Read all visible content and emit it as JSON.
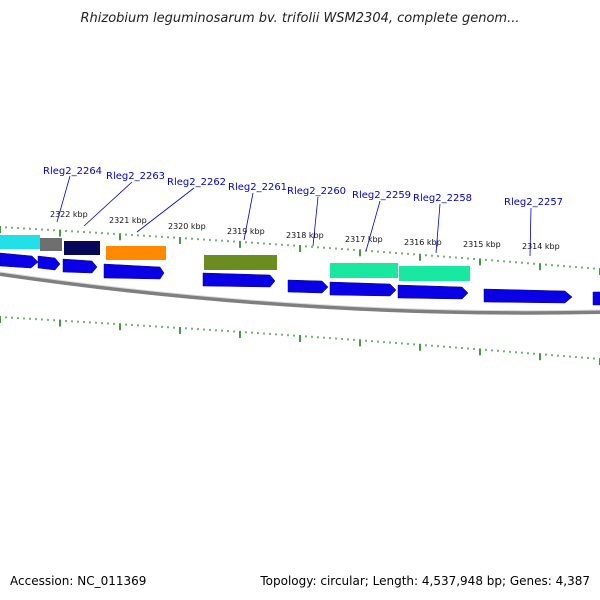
{
  "title": "Rhizobium leguminosarum bv. trifolii WSM2304, complete genom...",
  "footer": {
    "accession": "Accession: NC_011369",
    "summary": "Topology: circular; Length: 4,537,948 bp; Genes: 4,387"
  },
  "colors": {
    "backbone": "#7f7f7f",
    "tick": "#1a7f1a",
    "label": "#0000cc",
    "cds_blue": "#0a00e6"
  },
  "kbp_labels": [
    "2322 kbp",
    "2321 kbp",
    "2320 kbp",
    "2319 kbp",
    "2318 kbp",
    "2317 kbp",
    "2316 kbp",
    "2315 kbp",
    "2314 kbp"
  ],
  "gene_labels": [
    "Rleg2_2264",
    "Rleg2_2263",
    "Rleg2_2262",
    "Rleg2_2261",
    "Rleg2_2260",
    "Rleg2_2259",
    "Rleg2_2258",
    "Rleg2_2257"
  ],
  "feature_colors": [
    "#22e0e8",
    "#6f6f6f",
    "#07075a",
    "#ff8a00",
    "#6b8c1f",
    "#19e8a0",
    "#19e8a0"
  ]
}
